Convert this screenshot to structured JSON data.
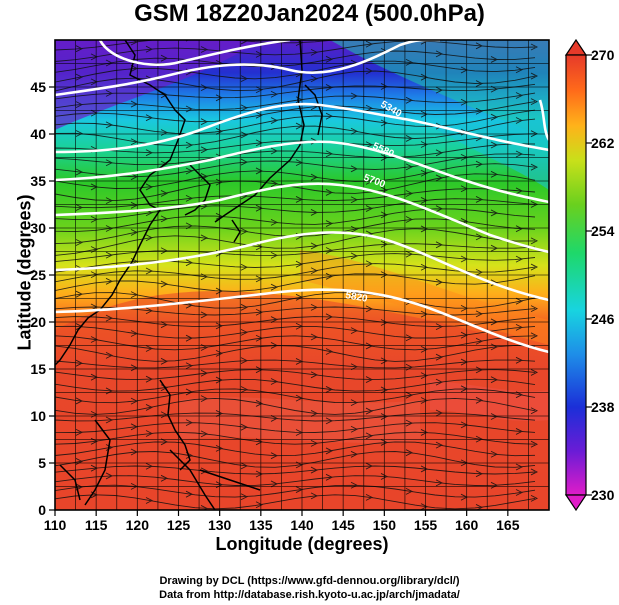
{
  "title": "GSM 18Z20Jan2024 (500.0hPa)",
  "xlabel": "Longitude (degrees)",
  "ylabel": "Latitude  (degrees)",
  "x_ticks": [
    "110",
    "115",
    "120",
    "125",
    "130",
    "135",
    "140",
    "145",
    "150",
    "155",
    "160",
    "165"
  ],
  "y_ticks": [
    "0",
    "5",
    "10",
    "15",
    "20",
    "25",
    "30",
    "35",
    "40",
    "45"
  ],
  "colorbar_ticks": [
    "230",
    "238",
    "246",
    "254",
    "262",
    "270"
  ],
  "contour_labels": [
    "5340",
    "5580",
    "5700",
    "5820"
  ],
  "credit_line1": "Drawing by DCL (https://www.gfd-dennou.org/library/dcl/)",
  "credit_line2": "Data from http://database.rish.kyoto-u.ac.jp/arch/jmadata/",
  "colors": {
    "warm": "#e8452a",
    "cool": "#2b3fd6",
    "contour": "#ffffff"
  },
  "chart_data": {
    "type": "heatmap",
    "title": "GSM 18Z20Jan2024 (500.0hPa)",
    "xlabel": "Longitude (degrees)",
    "ylabel": "Latitude  (degrees)",
    "xlim": [
      110,
      170
    ],
    "ylim": [
      0,
      50
    ],
    "colorbar_range": [
      230,
      270
    ],
    "colorbar_ticks": [
      230,
      238,
      246,
      254,
      262,
      270
    ],
    "fields": [
      "temperature (shaded)",
      "geopotential height (white contours)",
      "wind (streamlines)"
    ]
  }
}
